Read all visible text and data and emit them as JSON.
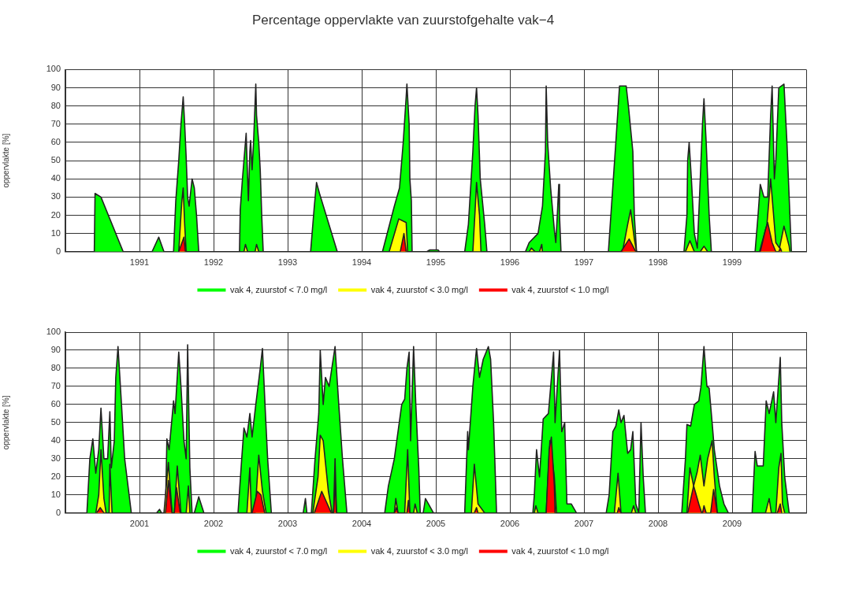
{
  "chart_data": [
    {
      "type": "area",
      "title": "Percentage oppervlakte van zuurstofgehalte vak−4",
      "ylabel": "oppervlakte [%]",
      "xlim": [
        1990,
        2000
      ],
      "xticks": [
        {
          "value": 1990,
          "label": null
        },
        1991,
        1992,
        1993,
        1994,
        1995,
        1996,
        1997,
        1998,
        1999,
        {
          "value": 2000,
          "label": null
        }
      ],
      "ylim": [
        0,
        100
      ],
      "yticks": [
        0,
        10,
        20,
        30,
        40,
        50,
        60,
        70,
        80,
        90,
        100
      ],
      "grid": true,
      "legend": "bottom",
      "series": [
        {
          "name": "vak 4, zuurstof < 7.0 mg/l",
          "color": "#00ff00",
          "x": [
            1990,
            1990.39,
            1990.4,
            1990.48,
            1990.78,
            1991.17,
            1991.26,
            1991.33,
            1991.46,
            1991.49,
            1991.53,
            1991.56,
            1991.59,
            1991.61,
            1991.63,
            1991.65,
            1991.67,
            1991.71,
            1991.74,
            1991.77,
            1991.8,
            1992.35,
            1992.36,
            1992.39,
            1992.42,
            1992.44,
            1992.46,
            1992.47,
            1992.49,
            1992.5,
            1992.52,
            1992.54,
            1992.57,
            1992.58,
            1992.61,
            1992.63,
            1992.65,
            1992.67,
            1993.31,
            1993.36,
            1993.39,
            1993.43,
            1993.67,
            1994.28,
            1994.44,
            1994.51,
            1994.56,
            1994.6,
            1994.61,
            1994.64,
            1994.65,
            1994.67,
            1994.68,
            1994.88,
            1994.92,
            1995.03,
            1995.05,
            1995.39,
            1995.44,
            1995.5,
            1995.53,
            1995.55,
            1995.57,
            1995.6,
            1995.66,
            1995.69,
            1996.21,
            1996.26,
            1996.38,
            1996.44,
            1996.48,
            1996.49,
            1996.51,
            1996.55,
            1996.6,
            1996.62,
            1996.64,
            1996.66,
            1996.67,
            1996.69,
            1997.33,
            1997.38,
            1997.43,
            1997.48,
            1997.57,
            1997.6,
            1997.66,
            1997.68,
            1997.71,
            1998.35,
            1998.39,
            1998.4,
            1998.42,
            1998.45,
            1998.49,
            1998.53,
            1998.56,
            1998.6,
            1998.62,
            1998.65,
            1998.69,
            1998.72,
            1999.31,
            1999.35,
            1999.38,
            1999.43,
            1999.48,
            1999.52,
            1999.54,
            1999.57,
            1999.59,
            1999.63,
            1999.7,
            1999.74,
            1999.77,
            1999.8,
            2000
          ],
          "values": [
            0,
            0,
            32,
            30,
            0,
            0,
            8,
            0,
            0,
            28,
            50,
            70,
            85,
            70,
            52,
            30,
            25,
            40,
            35,
            20,
            0,
            0,
            23,
            40,
            55,
            65,
            40,
            28,
            55,
            61,
            45,
            60,
            92,
            75,
            60,
            45,
            20,
            0,
            0,
            25,
            38,
            32,
            0,
            0,
            25,
            35,
            60,
            85,
            92,
            70,
            40,
            28,
            0,
            0,
            1,
            1,
            0,
            0,
            15,
            55,
            80,
            90,
            75,
            40,
            15,
            0,
            0,
            5,
            10,
            25,
            55,
            91,
            60,
            35,
            12,
            5,
            20,
            37,
            20,
            0,
            0,
            30,
            60,
            91,
            91,
            80,
            55,
            20,
            0,
            0,
            20,
            50,
            60,
            40,
            10,
            2,
            30,
            70,
            84,
            60,
            20,
            0,
            0,
            20,
            37,
            30,
            30,
            75,
            91,
            40,
            50,
            90,
            92,
            60,
            30,
            0,
            0
          ]
        },
        {
          "name": "vak 4, zuurstof < 3.0 mg/l",
          "color": "#ffff00",
          "x": [
            1991.53,
            1991.57,
            1991.59,
            1991.61,
            1991.63,
            1992.41,
            1992.43,
            1992.46,
            1992.56,
            1992.58,
            1992.61,
            1994.37,
            1994.5,
            1994.6,
            1994.62,
            1995.5,
            1995.54,
            1995.55,
            1995.59,
            1995.61,
            1996.26,
            1996.29,
            1996.34,
            1996.4,
            1996.43,
            1996.44,
            1997.52,
            1997.59,
            1997.63,
            1997.68,
            1997.71,
            1998.37,
            1998.43,
            1998.49,
            1998.57,
            1998.62,
            1998.67,
            1999.37,
            1999.47,
            1999.52,
            1999.55,
            1999.59,
            1999.64,
            1999.7,
            1999.77,
            1999.78
          ],
          "values": [
            0,
            27,
            35,
            15,
            0,
            0,
            4,
            0,
            0,
            4,
            0,
            0,
            18,
            16,
            0,
            0,
            30,
            38,
            20,
            0,
            0,
            2,
            0,
            0,
            4,
            0,
            0,
            15,
            23,
            7,
            0,
            0,
            6,
            0,
            0,
            3,
            0,
            0,
            15,
            40,
            25,
            5,
            2,
            14,
            3,
            0
          ]
        },
        {
          "name": "vak 4, zuurstof < 1.0 mg/l",
          "color": "#ff0000",
          "x": [
            1991.53,
            1991.6,
            1991.62,
            1994.52,
            1994.57,
            1994.6,
            1997.5,
            1997.61,
            1997.7,
            1999.38,
            1999.45,
            1999.48,
            1999.54,
            1999.59,
            1999.63,
            1999.65,
            1999.67
          ],
          "values": [
            0,
            8,
            0,
            0,
            10,
            0,
            0,
            7,
            0,
            0,
            12,
            16,
            5,
            0,
            0,
            2,
            0
          ]
        }
      ]
    },
    {
      "type": "area",
      "ylabel": "oppervlakte [%]",
      "xlim": [
        2000,
        2010
      ],
      "xticks": [
        {
          "value": 2000,
          "label": null
        },
        2001,
        2002,
        2003,
        2004,
        2005,
        2006,
        2007,
        2008,
        2009,
        {
          "value": 2010,
          "label": null
        }
      ],
      "ylim": [
        0,
        100
      ],
      "yticks": [
        0,
        10,
        20,
        30,
        40,
        50,
        60,
        70,
        80,
        90,
        100
      ],
      "grid": true,
      "legend": "bottom",
      "series": [
        {
          "name": "vak 4, zuurstof < 7.0 mg/l",
          "color": "#00ff00",
          "x": [
            2000,
            2000.29,
            2000.33,
            2000.37,
            2000.41,
            2000.45,
            2000.48,
            2000.52,
            2000.57,
            2000.6,
            2000.62,
            2000.66,
            2000.68,
            2000.71,
            2000.75,
            2000.8,
            2000.89,
            2001.23,
            2001.27,
            2001.3,
            2001.35,
            2001.37,
            2001.4,
            2001.46,
            2001.48,
            2001.53,
            2001.56,
            2001.6,
            2001.63,
            2001.65,
            2001.68,
            2001.71,
            2001.74,
            2001.8,
            2001.87,
            2002.33,
            2002.38,
            2002.41,
            2002.45,
            2002.49,
            2002.52,
            2002.57,
            2002.63,
            2002.66,
            2002.7,
            2002.73,
            2002.78,
            2003.21,
            2003.24,
            2003.26,
            2003.32,
            2003.37,
            2003.42,
            2003.44,
            2003.48,
            2003.51,
            2003.56,
            2003.64,
            2003.69,
            2003.74,
            2003.8,
            2004.31,
            2004.36,
            2004.44,
            2004.54,
            2004.58,
            2004.61,
            2004.64,
            2004.66,
            2004.7,
            2004.73,
            2004.77,
            2004.79,
            2004.83,
            2004.86,
            2004.97,
            2005.39,
            2005.43,
            2005.44,
            2005.5,
            2005.55,
            2005.59,
            2005.64,
            2005.71,
            2005.74,
            2005.78,
            2005.82,
            2006.31,
            2006.33,
            2006.36,
            2006.4,
            2006.45,
            2006.52,
            2006.59,
            2006.61,
            2006.67,
            2006.7,
            2006.74,
            2006.77,
            2006.83,
            2006.9,
            2007.3,
            2007.34,
            2007.39,
            2007.43,
            2007.47,
            2007.5,
            2007.54,
            2007.59,
            2007.63,
            2007.66,
            2007.7,
            2007.74,
            2007.77,
            2007.8,
            2007.83,
            2008.32,
            2008.37,
            2008.39,
            2008.44,
            2008.49,
            2008.55,
            2008.58,
            2008.62,
            2008.66,
            2008.69,
            2008.73,
            2008.76,
            2008.83,
            2008.89,
            2008.95,
            2009.27,
            2009.31,
            2009.34,
            2009.42,
            2009.46,
            2009.5,
            2009.56,
            2009.59,
            2009.65,
            2009.67,
            2009.71,
            2009.77,
            2010
          ],
          "values": [
            0,
            0,
            30,
            41,
            22,
            35,
            58,
            30,
            30,
            56,
            25,
            40,
            75,
            92,
            65,
            30,
            0,
            0,
            2,
            0,
            0,
            41,
            35,
            62,
            55,
            89,
            70,
            40,
            30,
            93,
            25,
            0,
            0,
            9,
            0,
            0,
            30,
            47,
            42,
            55,
            42,
            60,
            80,
            91,
            55,
            30,
            0,
            0,
            8,
            0,
            0,
            30,
            55,
            90,
            60,
            75,
            70,
            92,
            60,
            30,
            0,
            0,
            15,
            30,
            60,
            63,
            80,
            89,
            40,
            92,
            60,
            25,
            0,
            0,
            8,
            0,
            0,
            45,
            35,
            70,
            91,
            75,
            85,
            92,
            85,
            50,
            0,
            0,
            10,
            35,
            20,
            52,
            55,
            89,
            50,
            90,
            45,
            50,
            5,
            5,
            0,
            0,
            10,
            45,
            48,
            57,
            50,
            54,
            33,
            35,
            45,
            5,
            0,
            50,
            20,
            0,
            0,
            30,
            49,
            48,
            60,
            62,
            70,
            92,
            70,
            69,
            50,
            35,
            15,
            5,
            0,
            0,
            34,
            26,
            26,
            62,
            55,
            67,
            50,
            86,
            50,
            20,
            0,
            0
          ]
        },
        {
          "name": "vak 4, zuurstof < 3.0 mg/l",
          "color": "#ffff00",
          "x": [
            2000.41,
            2000.45,
            2000.48,
            2000.52,
            2000.55,
            2000.59,
            2000.6,
            2000.63,
            2001.33,
            2001.39,
            2001.44,
            2001.47,
            2001.51,
            2001.56,
            2001.63,
            2001.66,
            2001.68,
            2002.45,
            2002.49,
            2002.51,
            2002.56,
            2002.61,
            2002.66,
            2002.71,
            2003.34,
            2003.41,
            2003.44,
            2003.48,
            2003.55,
            2003.6,
            2003.62,
            2003.64,
            2003.66,
            2004.44,
            2004.46,
            2004.49,
            2004.58,
            2004.62,
            2004.65,
            2004.7,
            2004.72,
            2004.75,
            2005.48,
            2005.52,
            2005.57,
            2005.66,
            2006.33,
            2006.35,
            2006.38,
            2006.49,
            2006.54,
            2006.6,
            2006.63,
            2007.41,
            2007.46,
            2007.5,
            2007.64,
            2007.67,
            2007.7,
            2008.39,
            2008.43,
            2008.48,
            2008.53,
            2008.57,
            2008.62,
            2008.67,
            2008.73,
            2008.76,
            2008.8,
            2009.45,
            2009.5,
            2009.53,
            2009.59,
            2009.63,
            2009.66,
            2009.68,
            2009.71
          ],
          "values": [
            0,
            10,
            35,
            8,
            0,
            0,
            27,
            0,
            0,
            28,
            0,
            0,
            26,
            0,
            0,
            15,
            0,
            0,
            25,
            0,
            0,
            32,
            12,
            0,
            0,
            20,
            43,
            40,
            12,
            0,
            0,
            30,
            0,
            0,
            8,
            0,
            0,
            35,
            0,
            0,
            5,
            0,
            0,
            27,
            5,
            0,
            0,
            4,
            0,
            0,
            40,
            20,
            0,
            0,
            22,
            0,
            0,
            4,
            0,
            0,
            25,
            15,
            23,
            32,
            15,
            30,
            40,
            20,
            0,
            0,
            8,
            0,
            0,
            25,
            33,
            5,
            0
          ]
        },
        {
          "name": "vak 4, zuurstof < 1.0 mg/l",
          "color": "#ff0000",
          "x": [
            2000.42,
            2000.47,
            2000.52,
            2001.35,
            2001.39,
            2001.44,
            2001.47,
            2001.5,
            2001.55,
            2002.52,
            2002.59,
            2002.64,
            2002.69,
            2003.36,
            2003.46,
            2003.59,
            2003.62,
            2003.64,
            2003.66,
            2004.44,
            2004.47,
            2004.49,
            2004.61,
            2004.63,
            2004.65,
            2005.52,
            2005.55,
            2005.57,
            2006.49,
            2006.53,
            2006.56,
            2006.6,
            2006.61,
            2007.45,
            2007.47,
            2007.5,
            2008.4,
            2008.48,
            2008.55,
            2008.59,
            2008.6,
            2008.62,
            2008.65,
            2008.71,
            2008.75,
            2008.8,
            2009.61,
            2009.65,
            2009.67
          ],
          "values": [
            0,
            3,
            0,
            0,
            18,
            0,
            0,
            14,
            0,
            0,
            12,
            10,
            0,
            0,
            12,
            0,
            0,
            17,
            0,
            0,
            3,
            0,
            0,
            7,
            0,
            0,
            3,
            0,
            0,
            35,
            42,
            15,
            0,
            0,
            3,
            0,
            0,
            15,
            5,
            0,
            0,
            4,
            0,
            0,
            13,
            0,
            0,
            5,
            0
          ]
        }
      ]
    }
  ]
}
